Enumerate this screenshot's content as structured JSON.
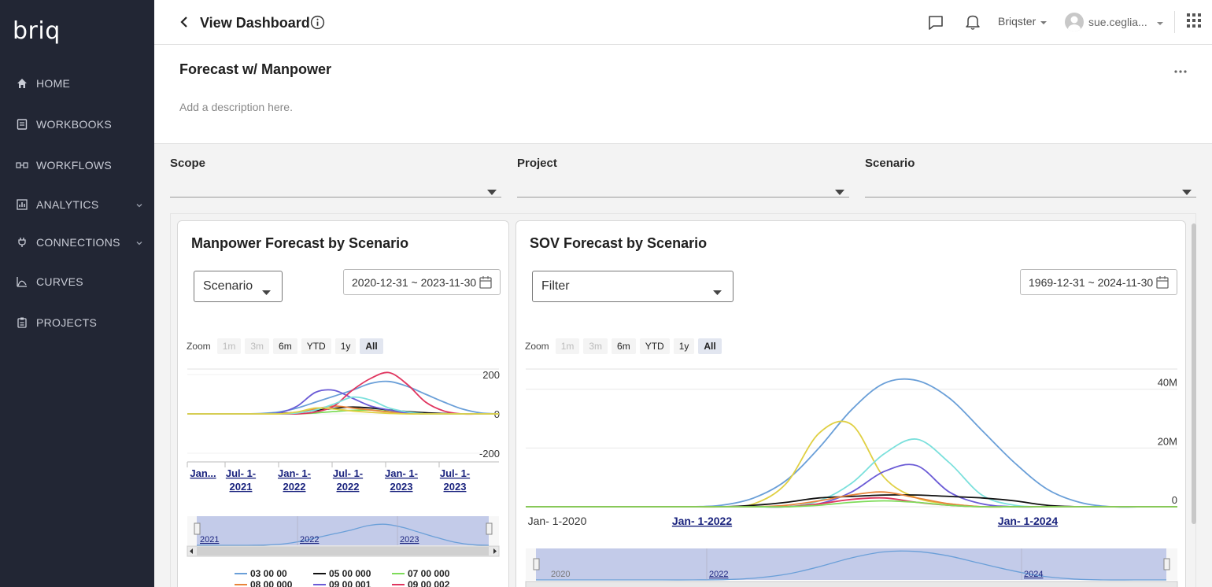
{
  "app": {
    "logo": "briq"
  },
  "sidebar": {
    "items": [
      {
        "label": "HOME",
        "icon": "home-icon"
      },
      {
        "label": "WORKBOOKS",
        "icon": "workbook-icon"
      },
      {
        "label": "WORKFLOWS",
        "icon": "workflow-icon"
      },
      {
        "label": "ANALYTICS",
        "icon": "analytics-icon"
      },
      {
        "label": "CONNECTIONS",
        "icon": "plug-icon"
      },
      {
        "label": "CURVES",
        "icon": "curve-icon"
      },
      {
        "label": "PROJECTS",
        "icon": "clipboard-icon"
      }
    ]
  },
  "header": {
    "title": "View Dashboard",
    "org": "Briqster",
    "user": "sue.ceglia..."
  },
  "dashboard": {
    "name": "Forecast w/ Manpower",
    "description_placeholder": "Add a description here."
  },
  "filters": {
    "scope": {
      "label": "Scope",
      "value": ""
    },
    "project": {
      "label": "Project",
      "value": ""
    },
    "scenario": {
      "label": "Scenario",
      "value": ""
    }
  },
  "zoom": {
    "label": "Zoom",
    "buttons": [
      "1m",
      "3m",
      "6m",
      "YTD",
      "1y",
      "All"
    ],
    "disabled": [
      "1m",
      "3m"
    ],
    "active": "All"
  },
  "colors": {
    "sidebar_bg": "#222634",
    "accent": "#1a237e"
  },
  "widgets": [
    {
      "title": "Manpower Forecast by Scenario",
      "dropdown": "Scenario",
      "daterange": "2020-12-31 ~ 2023-11-30",
      "chart_data": {
        "type": "line",
        "y_ticks": [
          "200",
          "0",
          "-200"
        ],
        "ylim": [
          -200,
          200
        ],
        "x_ticks": [
          {
            "line1": "Jan...",
            "line2": ""
          },
          {
            "line1": "Jul- 1-",
            "line2": "2021"
          },
          {
            "line1": "Jan- 1-",
            "line2": "2022"
          },
          {
            "line1": "Jul- 1-",
            "line2": "2022"
          },
          {
            "line1": "Jan- 1-",
            "line2": "2023"
          },
          {
            "line1": "Jul- 1-",
            "line2": "2023"
          }
        ],
        "navigator_labels": [
          "2021",
          "2022",
          "2023"
        ],
        "x": [
          0,
          2,
          4,
          6,
          8,
          10,
          12,
          14,
          16,
          18,
          20,
          22,
          24,
          26,
          28,
          30,
          32,
          34
        ],
        "series": [
          {
            "name": "03 00 00",
            "color": "#6a9fd8",
            "values": [
              0,
              0,
              0,
              0,
              2,
              10,
              30,
              60,
              90,
              120,
              155,
              165,
              140,
              100,
              60,
              25,
              5,
              0
            ]
          },
          {
            "name": "05 00 000",
            "color": "#111111",
            "values": [
              0,
              0,
              0,
              0,
              0,
              2,
              8,
              18,
              28,
              35,
              30,
              20,
              12,
              6,
              2,
              0,
              0,
              0
            ]
          },
          {
            "name": "07 00 000",
            "color": "#7edc5a",
            "values": [
              0,
              0,
              0,
              0,
              0,
              0,
              0,
              5,
              12,
              18,
              20,
              12,
              5,
              0,
              0,
              0,
              0,
              0
            ]
          },
          {
            "name": "08 00 000",
            "color": "#e8843a",
            "values": [
              0,
              0,
              0,
              0,
              0,
              0,
              5,
              25,
              40,
              30,
              20,
              10,
              5,
              0,
              0,
              0,
              0,
              0
            ]
          },
          {
            "name": "09 00 001",
            "color": "#6b5bd6",
            "values": [
              0,
              0,
              0,
              0,
              0,
              5,
              40,
              110,
              120,
              80,
              40,
              20,
              5,
              0,
              0,
              0,
              0,
              0
            ]
          },
          {
            "name": "09 00 002",
            "color": "#e0355f",
            "values": [
              0,
              0,
              0,
              0,
              0,
              0,
              0,
              10,
              40,
              120,
              180,
              210,
              150,
              60,
              15,
              0,
              0,
              0
            ]
          },
          {
            "name": "",
            "color": "#7be0dc",
            "values": [
              0,
              0,
              0,
              0,
              0,
              0,
              5,
              20,
              50,
              85,
              70,
              30,
              10,
              0,
              0,
              0,
              0,
              0
            ]
          },
          {
            "name": "",
            "color": "#e0d044",
            "values": [
              0,
              0,
              0,
              0,
              0,
              0,
              10,
              30,
              25,
              15,
              8,
              3,
              0,
              0,
              0,
              0,
              0,
              0
            ]
          }
        ]
      }
    },
    {
      "title": "SOV Forecast by Scenario",
      "dropdown": "Filter",
      "daterange": "1969-12-31 ~ 2024-11-30",
      "chart_data": {
        "type": "line",
        "y_ticks": [
          "40M",
          "20M",
          "0"
        ],
        "ylim": [
          0,
          45000000
        ],
        "x_ticks": [
          {
            "label": "Jan- 1-2020",
            "underline": false
          },
          {
            "label": "Jan- 1-2022",
            "underline": true
          },
          {
            "label": "Jan- 1-2024",
            "underline": true
          }
        ],
        "navigator_labels": [
          "2020",
          "2022",
          "2024"
        ],
        "x": [
          0,
          2,
          4,
          6,
          8,
          10,
          12,
          14,
          16,
          18,
          20,
          22,
          24,
          26,
          28,
          30,
          32,
          34,
          36,
          38,
          40
        ],
        "series": [
          {
            "name": "",
            "color": "#6a9fd8",
            "values": [
              0,
              0,
              0,
              0,
              0,
              0,
              500000,
              3000000,
              9000000,
              20000000,
              33000000,
              42000000,
              43000000,
              37000000,
              26000000,
              15000000,
              6000000,
              1500000,
              0,
              0,
              0
            ]
          },
          {
            "name": "",
            "color": "#e0d044",
            "values": [
              0,
              0,
              0,
              0,
              0,
              0,
              0,
              1000000,
              8000000,
              25000000,
              28000000,
              10000000,
              3000000,
              1000000,
              0,
              0,
              0,
              0,
              0,
              0,
              0
            ]
          },
          {
            "name": "",
            "color": "#7be0dc",
            "values": [
              0,
              0,
              0,
              0,
              0,
              0,
              0,
              0,
              0,
              2000000,
              8000000,
              18000000,
              23000000,
              15000000,
              4000000,
              500000,
              0,
              0,
              0,
              0,
              0
            ]
          },
          {
            "name": "",
            "color": "#6b5bd6",
            "values": [
              0,
              0,
              0,
              0,
              0,
              0,
              0,
              0,
              0,
              1000000,
              5000000,
              12000000,
              14000000,
              5000000,
              1000000,
              0,
              0,
              0,
              0,
              0,
              0
            ]
          },
          {
            "name": "",
            "color": "#111111",
            "values": [
              0,
              0,
              0,
              0,
              0,
              0,
              0,
              500000,
              1500000,
              3000000,
              3500000,
              4000000,
              4000000,
              3500000,
              3000000,
              2000000,
              500000,
              0,
              0,
              0,
              0
            ]
          },
          {
            "name": "",
            "color": "#e8843a",
            "values": [
              0,
              0,
              0,
              0,
              0,
              0,
              0,
              0,
              500000,
              2000000,
              4000000,
              5000000,
              3000000,
              1000000,
              0,
              0,
              0,
              0,
              0,
              0,
              0
            ]
          },
          {
            "name": "",
            "color": "#e0355f",
            "values": [
              0,
              0,
              0,
              0,
              0,
              0,
              0,
              0,
              0,
              1000000,
              2500000,
              3000000,
              1500000,
              500000,
              0,
              0,
              0,
              0,
              0,
              0,
              0
            ]
          },
          {
            "name": "",
            "color": "#7edc5a",
            "values": [
              0,
              0,
              0,
              0,
              0,
              0,
              0,
              0,
              0,
              500000,
              1500000,
              2000000,
              1500000,
              500000,
              0,
              0,
              0,
              0,
              0,
              0,
              0
            ]
          }
        ]
      }
    }
  ]
}
